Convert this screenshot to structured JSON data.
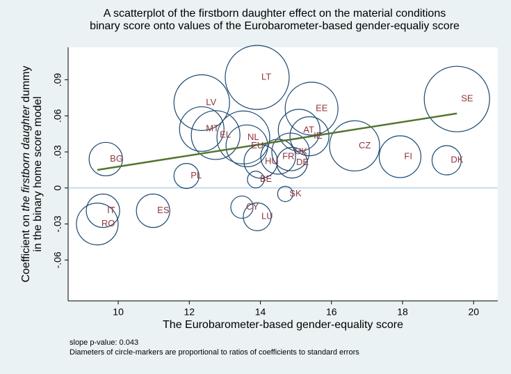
{
  "chart_data": {
    "type": "scatter",
    "title": [
      "A scatterplot of the firstborn daughter effect on the material conditions",
      "binary score onto values of the Eurobarometer-based gender-equaliy score"
    ],
    "x_label": "The Eurobarometer-based gender-equality score",
    "y_label": [
      "Coefficient on",
      "the firstborn daughter",
      "dummy"
    ],
    "y_label_2": "in the binary home score model",
    "notes": [
      "slope p-value: 0.043",
      "Diameters of circle-markers are proportional to ratios of coefficients to standard errors"
    ],
    "labels": [
      "LT",
      "SE",
      "LV",
      "EE",
      "MT",
      "EL",
      "AT",
      "IE",
      "NL",
      "EU",
      "CZ",
      "FI",
      "DK",
      "BG",
      "UK",
      "FR",
      "HU",
      "DE",
      "BE",
      "PL",
      "SK",
      "CY",
      "LU",
      "ES",
      "IT",
      "RO"
    ],
    "x": [
      13.91,
      19.53,
      12.35,
      15.44,
      12.35,
      12.74,
      15.09,
      15.38,
      13.52,
      13.62,
      16.65,
      17.93,
      19.24,
      9.65,
      14.85,
      14.5,
      14.01,
      14.89,
      13.87,
      11.92,
      14.7,
      13.48,
      13.91,
      10.98,
      9.57,
      9.41
    ],
    "y": [
      0.092,
      0.074,
      0.071,
      0.066,
      0.049,
      0.044,
      0.048,
      0.043,
      0.042,
      0.035,
      0.035,
      0.026,
      0.023,
      0.024,
      0.03,
      0.026,
      0.022,
      0.021,
      0.007,
      0.01,
      -0.005,
      -0.016,
      -0.024,
      -0.019,
      -0.019,
      -0.03
    ],
    "sizes": [
      46,
      47,
      40,
      38,
      32,
      35,
      30,
      28,
      38,
      30,
      36,
      30,
      21,
      24,
      27,
      25,
      24,
      22,
      12,
      18,
      11,
      16,
      20,
      24,
      24,
      30
    ],
    "marker_color": "#1a476f",
    "label_color": "#90353b",
    "fit_line": {
      "x": [
        9.41,
        19.53
      ],
      "y": [
        0.015,
        0.062
      ],
      "color": "#55752f"
    },
    "hline": {
      "value": 0,
      "color": "#8fbedc"
    },
    "xlim": [
      8.59,
      20.68
    ],
    "ylim": [
      -0.094,
      0.117
    ],
    "xticks": [
      10,
      12,
      14,
      16,
      18,
      20
    ],
    "yticks": [
      {
        "value": -0.06,
        "label": "-.06"
      },
      {
        "value": -0.03,
        "label": "-.03"
      },
      0,
      {
        "value": 0.03,
        "label": ".03"
      },
      {
        "value": 0.06,
        "label": ".06"
      },
      {
        "value": 0.09,
        "label": ".09"
      }
    ]
  }
}
